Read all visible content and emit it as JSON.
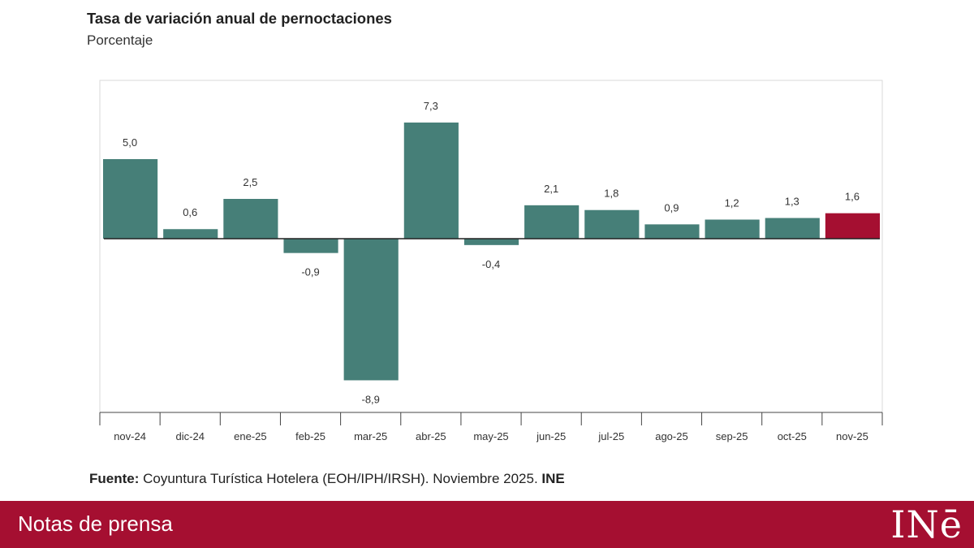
{
  "chart_data": {
    "type": "bar",
    "title": "Tasa de variación anual de pernoctaciones",
    "subtitle": "Porcentaje",
    "categories": [
      "nov-24",
      "dic-24",
      "ene-25",
      "feb-25",
      "mar-25",
      "abr-25",
      "may-25",
      "jun-25",
      "jul-25",
      "ago-25",
      "sep-25",
      "oct-25",
      "nov-25"
    ],
    "values": [
      5.0,
      0.6,
      2.5,
      -0.9,
      -8.9,
      7.3,
      -0.4,
      2.1,
      1.8,
      0.9,
      1.2,
      1.3,
      1.6
    ],
    "labels": [
      "5,0",
      "0,6",
      "2,5",
      "-0,9",
      "-8,9",
      "7,3",
      "-0,4",
      "2,1",
      "1,8",
      "0,9",
      "1,2",
      "1,3",
      "1,6"
    ],
    "highlight_index": 12,
    "ylim": [
      -10.5,
      10.0
    ],
    "colors": {
      "bar": "#467f78",
      "highlight": "#a50f31"
    },
    "xlabel": "",
    "ylabel": ""
  },
  "source": {
    "label": "Fuente:",
    "text": " Coyuntura Turística Hotelera (EOH/IPH/IRSH). Noviembre 2025. ",
    "org": "INE"
  },
  "footer": {
    "text": "Notas de prensa",
    "logo": "INē"
  }
}
